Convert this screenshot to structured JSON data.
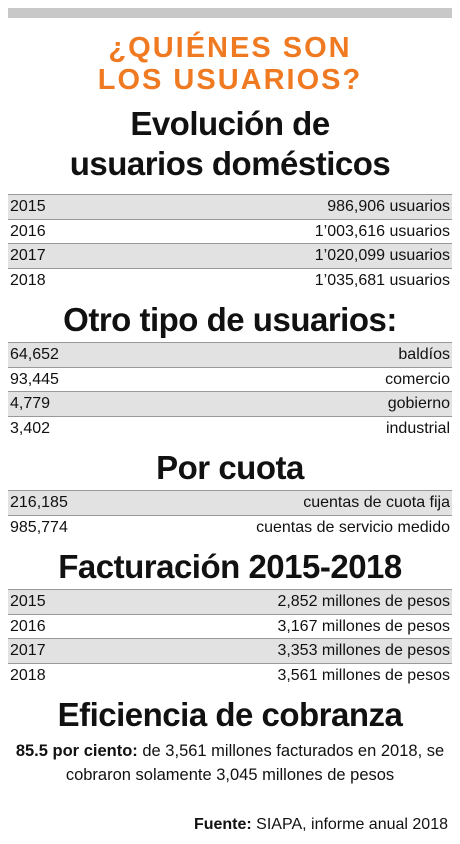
{
  "title": [
    "¿QUIÉNES SON",
    "LOS USUARIOS?"
  ],
  "sections": [
    {
      "heading": [
        "Evolución de",
        "usuarios domésticos"
      ],
      "rows": [
        [
          "2015",
          "986,906 usuarios"
        ],
        [
          "2016",
          "1’003,616 usuarios"
        ],
        [
          "2017",
          "1’020,099 usuarios"
        ],
        [
          "2018",
          "1’035,681 usuarios"
        ]
      ]
    },
    {
      "heading": [
        "Otro tipo de usuarios:"
      ],
      "rows": [
        [
          "64,652",
          "baldíos"
        ],
        [
          "93,445",
          "comercio"
        ],
        [
          "4,779",
          "gobierno"
        ],
        [
          "3,402",
          "industrial"
        ]
      ]
    },
    {
      "heading": [
        "Por cuota"
      ],
      "rows": [
        [
          "216,185",
          "cuentas de cuota fija"
        ],
        [
          "985,774",
          "cuentas de servicio medido"
        ]
      ]
    },
    {
      "heading": [
        "Facturación 2015-2018"
      ],
      "rows": [
        [
          "2015",
          "2,852 millones de pesos"
        ],
        [
          "2016",
          "3,167 millones de pesos"
        ],
        [
          "2017",
          "3,353 millones de pesos"
        ],
        [
          "2018",
          "3,561 millones de pesos"
        ]
      ]
    },
    {
      "heading": [
        "Eficiencia de cobranza"
      ],
      "rows": []
    }
  ],
  "paragraph": {
    "lead": "85.5 por ciento:",
    "text": "de 3,561 millones facturados en 2018, se cobraron solamente 3,045 millones de pesos"
  },
  "source": {
    "label": "Fuente:",
    "text": "SIAPA, informe anual 2018"
  }
}
